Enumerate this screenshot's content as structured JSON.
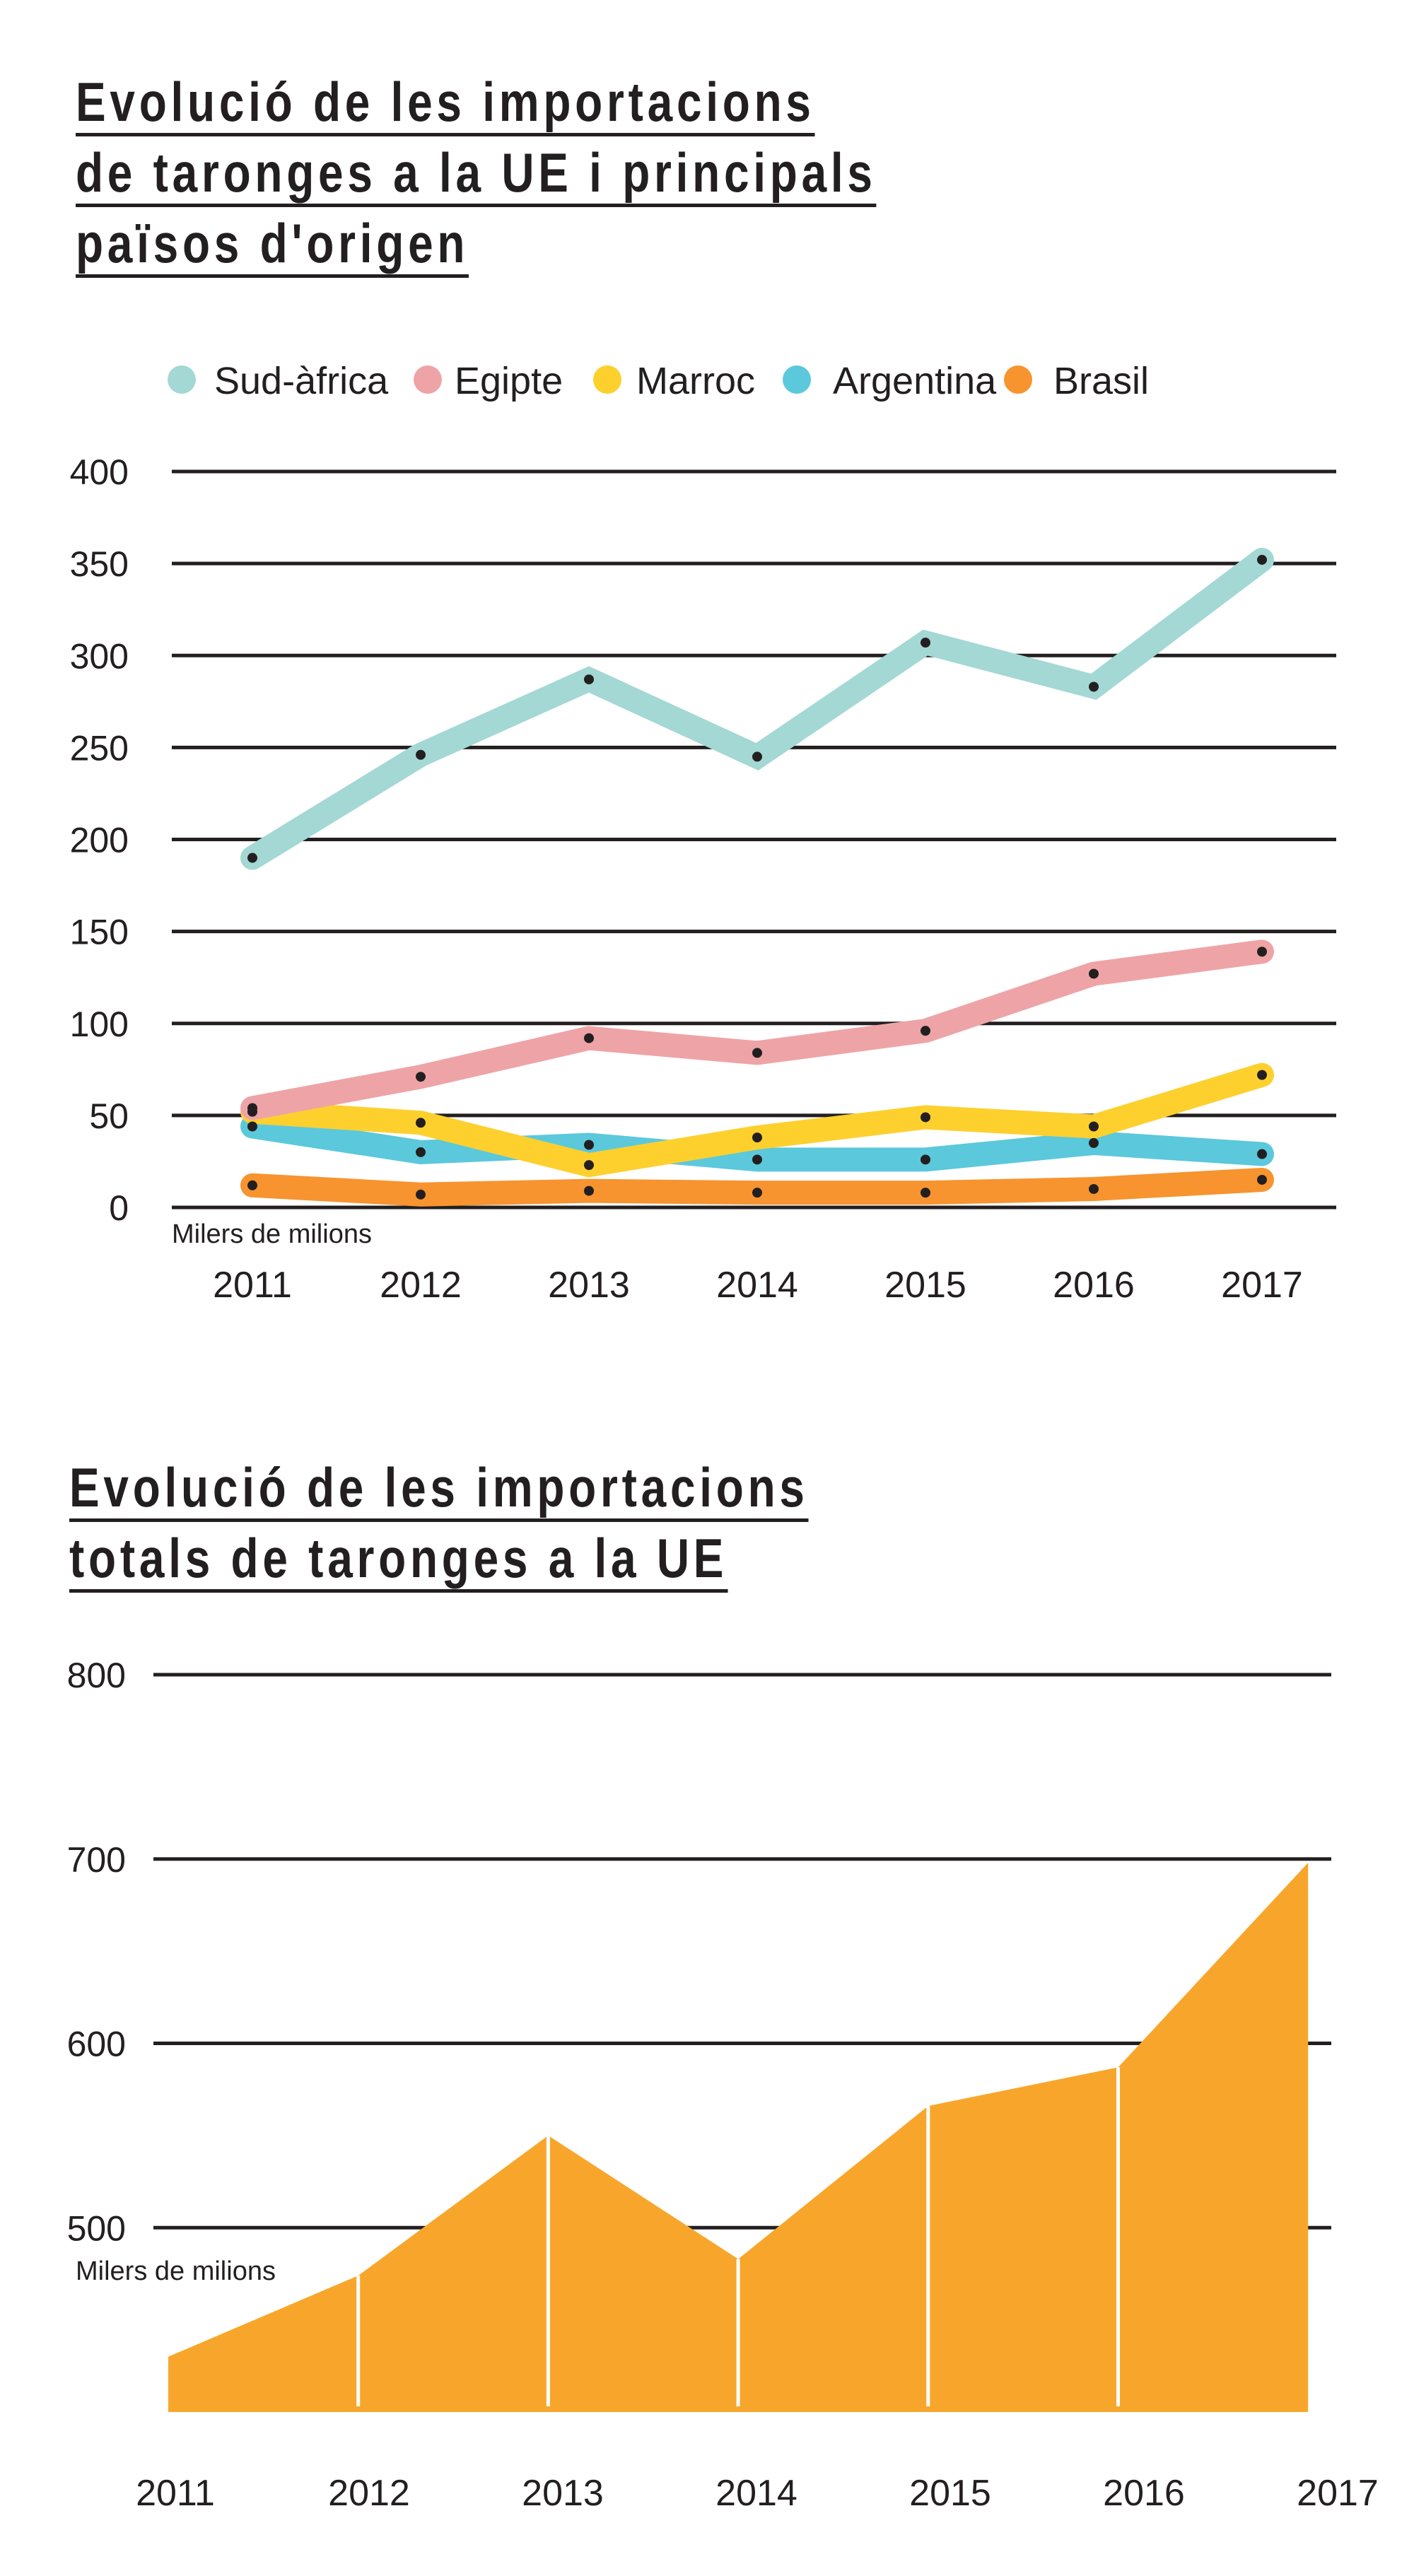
{
  "chart_data": [
    {
      "type": "line",
      "title": [
        "Evolució de les importacions",
        "de taronges a la UE i principals",
        "països d'origen"
      ],
      "unit_label": "Milers de milions",
      "categories": [
        "2011",
        "2012",
        "2013",
        "2014",
        "2015",
        "2016",
        "2017"
      ],
      "ylim": [
        0,
        400
      ],
      "yticks": [
        "0",
        "50",
        "100",
        "150",
        "200",
        "250",
        "300",
        "350",
        "400"
      ],
      "grid": true,
      "legend_position": "top",
      "series": [
        {
          "name": "Sud-àfrica",
          "color": "#a3d8d4",
          "values": [
            190,
            246,
            287,
            245,
            307,
            283,
            352
          ]
        },
        {
          "name": "Egipte",
          "color": "#eea4a7",
          "values": [
            54,
            71,
            92,
            84,
            96,
            127,
            139
          ]
        },
        {
          "name": "Marroc",
          "color": "#fdd02e",
          "values": [
            52,
            46,
            23,
            38,
            49,
            44,
            72
          ]
        },
        {
          "name": "Argentina",
          "color": "#5bc8dc",
          "values": [
            44,
            30,
            34,
            26,
            26,
            35,
            29
          ]
        },
        {
          "name": "Brasil",
          "color": "#f7942f",
          "values": [
            12,
            7,
            9,
            8,
            8,
            10,
            15
          ]
        }
      ],
      "marker_color": "#231f20"
    },
    {
      "type": "area",
      "title": [
        "Evolució de les importacions",
        "totals de taronges a la UE"
      ],
      "unit_label": "Milers de milions",
      "categories": [
        "2011",
        "2012",
        "2013",
        "2014",
        "2015",
        "2016",
        "2017"
      ],
      "ylim": [
        400,
        800
      ],
      "yticks": [
        "500",
        "600",
        "700",
        "800"
      ],
      "grid": true,
      "color": "#f8a62b",
      "values": [
        430,
        474,
        550,
        483,
        566,
        587,
        698
      ]
    }
  ]
}
